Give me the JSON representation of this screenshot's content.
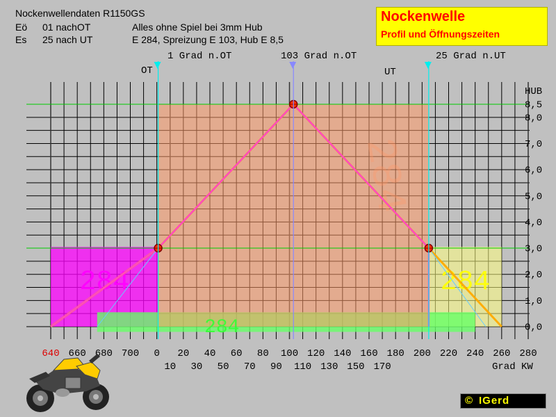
{
  "header": {
    "line1": "Nockenwellendaten R1150GS",
    "eo_label": "Eö",
    "eo_value": "01 nachOT",
    "es_label": "Es",
    "es_value": "25 nach UT",
    "note1": "Alles ohne Spiel bei 3mm Hub",
    "note2": "E 284,  Spreizung E 103, Hub E 8,5"
  },
  "title_box": {
    "title": "Nockenwelle",
    "subtitle": "Profil und Öffnungszeiten"
  },
  "markers": {
    "ot": "OT",
    "ut": "UT",
    "open_label": "1 Grad n.OT",
    "peak_label": "103 Grad n.OT",
    "close_label": "25 Grad n.UT"
  },
  "copyright": {
    "symbol": "©",
    "name": "IGerd"
  },
  "chart_data": {
    "type": "line",
    "xlabel": "Grad KW",
    "ylabel": "HUB",
    "x_ticks_top": [
      "640",
      "660",
      "680",
      "700",
      "0",
      "20",
      "40",
      "60",
      "80",
      "100",
      "120",
      "140",
      "160",
      "180",
      "200",
      "220",
      "240",
      "260",
      "280"
    ],
    "x_ticks_bottom": [
      "10",
      "30",
      "50",
      "70",
      "90",
      "110",
      "130",
      "150",
      "170"
    ],
    "y_ticks": [
      "0,0",
      "1,0",
      "2,0",
      "3,0",
      "4,0",
      "5,0",
      "6,0",
      "7,0",
      "8,0",
      "8,5"
    ],
    "ylim": [
      0,
      8.5
    ],
    "xlim": [
      -80,
      280
    ],
    "series": [
      {
        "values": [
          [
            -80,
            0.0
          ],
          [
            1,
            3.0
          ],
          [
            103,
            8.5
          ],
          [
            205,
            3.0
          ],
          [
            260,
            0.0
          ]
        ],
        "color": "#ffaa00"
      },
      {
        "values": [
          [
            -80,
            0.0
          ],
          [
            1,
            3.0
          ],
          [
            103,
            8.5
          ],
          [
            205,
            3.0
          ],
          [
            205,
            0.0
          ]
        ],
        "color": "#ff44cc"
      }
    ],
    "key_points": [
      {
        "x": 1,
        "y": 3.0
      },
      {
        "x": 103,
        "y": 8.5
      },
      {
        "x": 205,
        "y": 3.0
      }
    ],
    "regions": [
      {
        "label": "284",
        "x": [
          -80,
          1
        ],
        "color": "#ff00ff"
      },
      {
        "label": "284",
        "x": [
          205,
          260
        ],
        "color": "#ffff80"
      },
      {
        "label": "284",
        "x": [
          -45,
          240
        ],
        "color": "#66ff66"
      },
      {
        "label": "284",
        "x": [
          1,
          205
        ],
        "color": "#ff9966"
      }
    ],
    "grid": true
  }
}
